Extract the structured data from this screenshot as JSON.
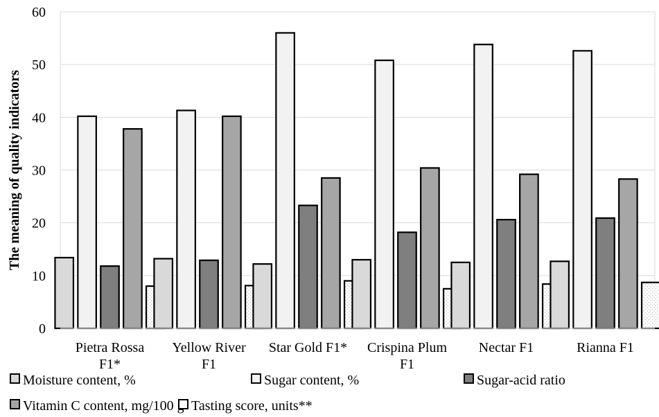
{
  "chart_data": {
    "type": "bar",
    "title": "",
    "xlabel": "",
    "ylabel": "The meaning of  quality indicators",
    "ylim": [
      0,
      60
    ],
    "yticks": [
      0,
      10,
      20,
      30,
      40,
      50,
      60
    ],
    "grid": true,
    "legend_position": "bottom",
    "categories": [
      [
        "Pietra Rossa",
        "F1*"
      ],
      [
        "Yellow River",
        "F1"
      ],
      [
        "Star Gold F1*"
      ],
      [
        "Crispina Plum",
        "F1"
      ],
      [
        "Nectar F1"
      ],
      [
        "Rianna F1"
      ]
    ],
    "series": [
      {
        "name": "Moisture content, %",
        "fill": "#d9d9d9",
        "pattern": "none",
        "values": [
          13.4,
          13.2,
          12.2,
          13.0,
          12.5,
          12.7
        ]
      },
      {
        "name": "Sugar content, %",
        "fill": "#f2f2f2",
        "pattern": "none",
        "values": [
          40.2,
          41.3,
          56.0,
          50.8,
          53.8,
          52.6
        ]
      },
      {
        "name": "Sugar-acid ratio",
        "fill": "#7f7f7f",
        "pattern": "none",
        "values": [
          11.8,
          12.9,
          23.3,
          18.2,
          20.6,
          20.9
        ]
      },
      {
        "name": "Vitamin C content, mg/100 g",
        "fill": "#a6a6a6",
        "pattern": "none",
        "values": [
          37.8,
          40.2,
          28.5,
          30.4,
          29.2,
          28.3
        ]
      },
      {
        "name": "Tasting score, units**",
        "fill": "#ffffff",
        "pattern": "dots",
        "values": [
          8.0,
          8.1,
          9.0,
          7.5,
          8.4,
          8.7
        ]
      }
    ]
  }
}
